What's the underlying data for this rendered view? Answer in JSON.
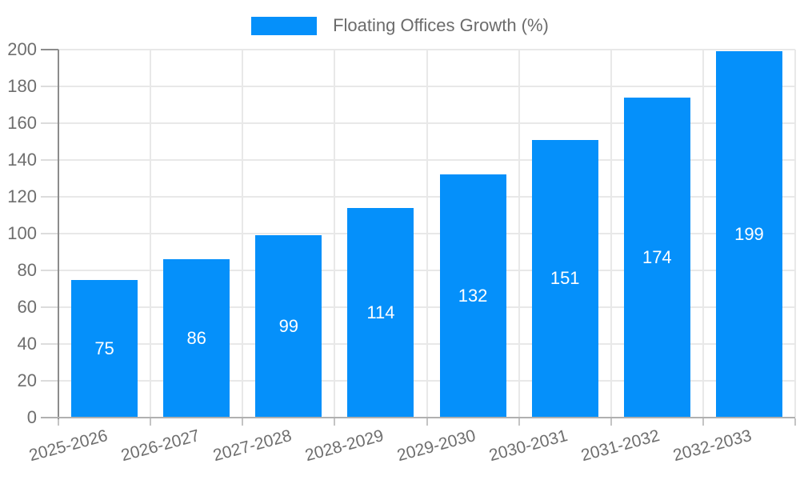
{
  "chart_data": {
    "type": "bar",
    "title": "",
    "legend": {
      "label": "Floating Offices Growth (%)",
      "position": "top-center"
    },
    "categories": [
      "2025-2026",
      "2026-2027",
      "2027-2028",
      "2028-2029",
      "2029-2030",
      "2030-2031",
      "2031-2032",
      "2032-2033"
    ],
    "values": [
      75,
      86,
      99,
      114,
      132,
      151,
      174,
      199
    ],
    "value_labels_shown": true,
    "xlabel": "",
    "ylabel": "",
    "ylim": [
      0,
      200
    ],
    "yticks": [
      0,
      20,
      40,
      60,
      80,
      100,
      120,
      140,
      160,
      180,
      200
    ],
    "grid": true,
    "colors": {
      "bar": "#0590fa",
      "value_label": "#ffffff",
      "axis_text": "#6e6e6e",
      "grid_line": "#e8e8e8",
      "axis_line_left": "#8c8c8c",
      "axis_line_bottom": "#b0b0b0"
    }
  }
}
